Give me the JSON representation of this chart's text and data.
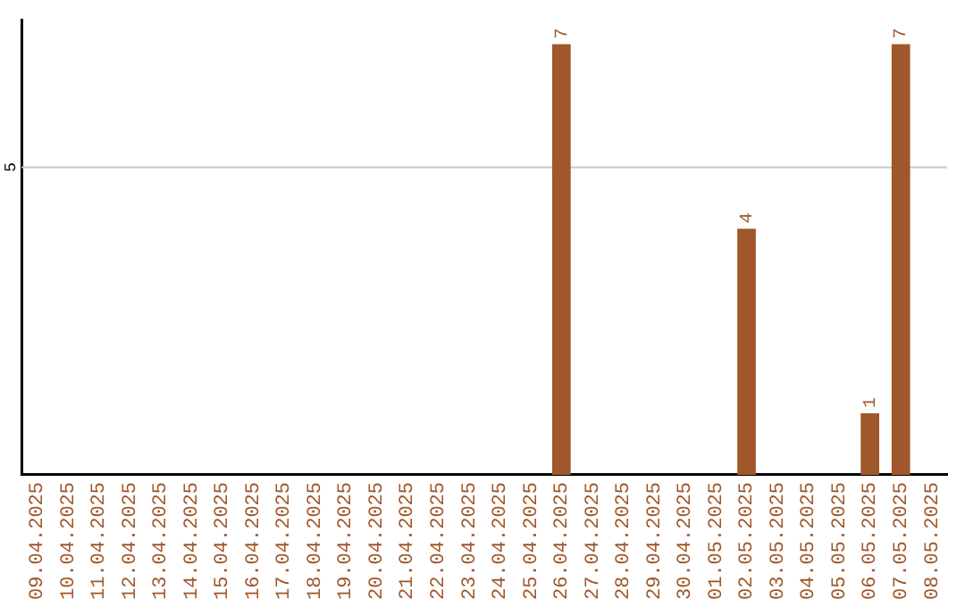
{
  "chart_data": {
    "type": "bar",
    "categories": [
      "09.04.2025",
      "10.04.2025",
      "11.04.2025",
      "12.04.2025",
      "13.04.2025",
      "14.04.2025",
      "15.04.2025",
      "16.04.2025",
      "17.04.2025",
      "18.04.2025",
      "19.04.2025",
      "20.04.2025",
      "21.04.2025",
      "22.04.2025",
      "23.04.2025",
      "24.04.2025",
      "25.04.2025",
      "26.04.2025",
      "27.04.2025",
      "28.04.2025",
      "29.04.2025",
      "30.04.2025",
      "01.05.2025",
      "02.05.2025",
      "03.05.2025",
      "04.05.2025",
      "05.05.2025",
      "06.05.2025",
      "07.05.2025",
      "08.05.2025"
    ],
    "values": [
      null,
      null,
      null,
      null,
      null,
      null,
      null,
      null,
      null,
      null,
      null,
      null,
      null,
      null,
      null,
      null,
      null,
      7,
      null,
      null,
      null,
      null,
      null,
      4,
      null,
      null,
      null,
      1,
      7,
      null
    ],
    "value_labels": [
      null,
      null,
      null,
      null,
      null,
      null,
      null,
      null,
      null,
      null,
      null,
      null,
      null,
      null,
      null,
      null,
      null,
      "7",
      null,
      null,
      null,
      null,
      null,
      "4",
      null,
      null,
      null,
      "1",
      "7",
      null
    ],
    "color": "#a0572a",
    "ylim": [
      0,
      7.4
    ],
    "ref_lines": [
      {
        "axis": "y",
        "value": 5,
        "label": "5",
        "color": "#c8c8c8"
      }
    ]
  }
}
